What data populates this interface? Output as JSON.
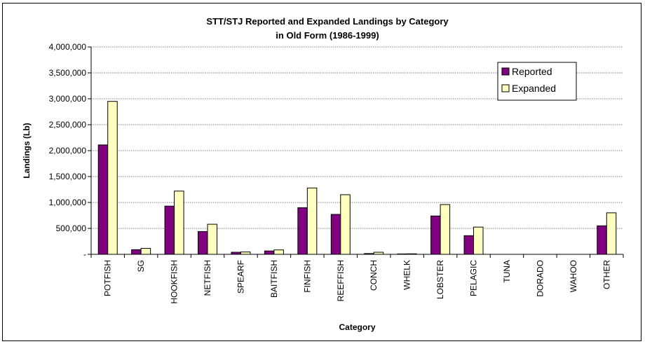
{
  "chart_data": {
    "type": "bar",
    "title_lines": [
      "STT/STJ  Reported and Expanded  Landings by Category",
      "in  Old  Form (1986-1999)"
    ],
    "xlabel": "Category",
    "ylabel": "Landings (Lb)",
    "ylim": [
      0,
      4000000
    ],
    "yticks": [
      "-",
      "500,000",
      "1,000,000",
      "1,500,000",
      "2,000,000",
      "2,500,000",
      "3,000,000",
      "3,500,000",
      "4,000,000"
    ],
    "categories": [
      "POTFISH",
      "SG",
      "HOOKFISH",
      "NETFISH",
      "SPEARF",
      "BAITFISH",
      "FINFISH",
      "REEFFISH",
      "CONCH",
      "WHELK",
      "LOBSTER",
      "PELAGIC",
      "TUNA",
      "DORADO",
      "WAHOO",
      "OTHER"
    ],
    "series": [
      {
        "name": "Reported",
        "color": "#800080",
        "values": [
          2110000,
          90000,
          930000,
          440000,
          40000,
          65000,
          900000,
          770000,
          15000,
          8000,
          740000,
          360000,
          0,
          0,
          0,
          550000
        ]
      },
      {
        "name": "Expanded",
        "color": "#ffffc0",
        "values": [
          2950000,
          115000,
          1220000,
          580000,
          45000,
          85000,
          1280000,
          1150000,
          40000,
          10000,
          960000,
          525000,
          0,
          0,
          0,
          800000
        ]
      }
    ],
    "grid": true,
    "legend_position": "top-right"
  }
}
